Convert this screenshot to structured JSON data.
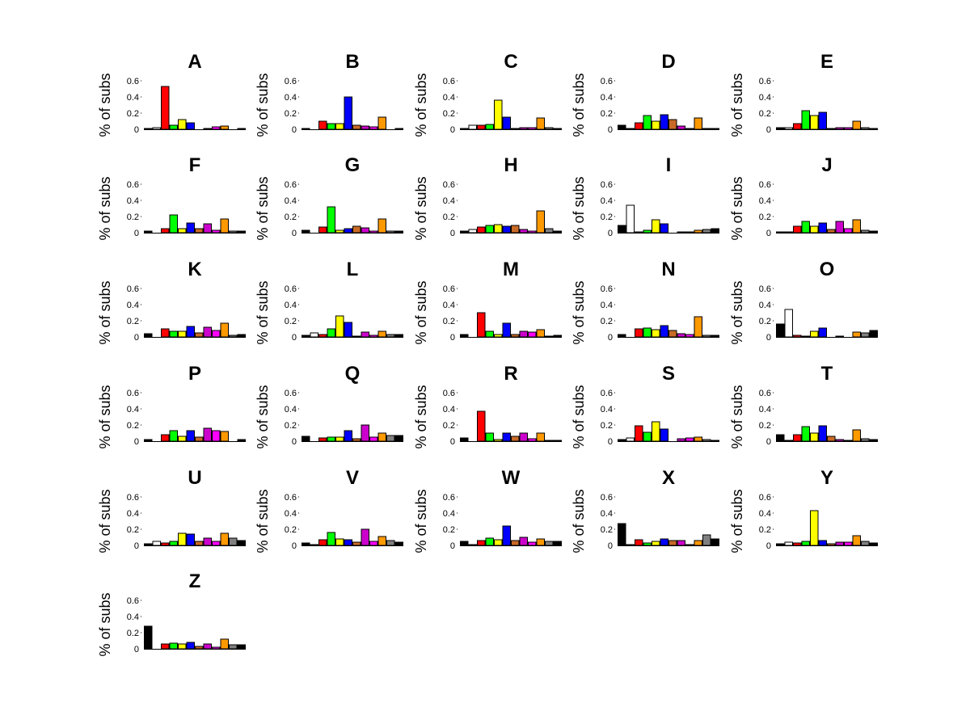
{
  "chart_data": {
    "type": "bar",
    "ylabel": "% of subs",
    "ylim": [
      0,
      0.7
    ],
    "yticks": [
      "0",
      "0.2",
      "0.4",
      "0.6"
    ],
    "ytick_values": [
      0,
      0.2,
      0.4,
      0.6
    ],
    "bar_colors": [
      "#000000",
      "#ffffff",
      "#ff0000",
      "#00ff00",
      "#ffff00",
      "#0000ff",
      "#c86a26",
      "#cc00cc",
      "#ff00ff",
      "#ff9900",
      "#808080",
      "#000000"
    ],
    "panels": [
      {
        "title": "A",
        "values": [
          0.01,
          0.02,
          0.53,
          0.05,
          0.12,
          0.08,
          0.0,
          0.01,
          0.03,
          0.04,
          0.0,
          0.01
        ]
      },
      {
        "title": "B",
        "values": [
          0.01,
          0.0,
          0.1,
          0.07,
          0.07,
          0.4,
          0.05,
          0.04,
          0.03,
          0.15,
          0.0,
          0.01
        ]
      },
      {
        "title": "C",
        "values": [
          0.01,
          0.05,
          0.05,
          0.06,
          0.36,
          0.15,
          0.01,
          0.02,
          0.02,
          0.14,
          0.02,
          0.01
        ]
      },
      {
        "title": "D",
        "values": [
          0.05,
          0.01,
          0.08,
          0.17,
          0.1,
          0.18,
          0.12,
          0.04,
          0.01,
          0.14,
          0.01,
          0.01
        ]
      },
      {
        "title": "E",
        "values": [
          0.02,
          0.02,
          0.07,
          0.23,
          0.17,
          0.21,
          0.01,
          0.02,
          0.02,
          0.1,
          0.02,
          0.01
        ]
      },
      {
        "title": "F",
        "values": [
          0.02,
          0.0,
          0.05,
          0.22,
          0.05,
          0.12,
          0.05,
          0.11,
          0.03,
          0.17,
          0.02,
          0.02
        ]
      },
      {
        "title": "G",
        "values": [
          0.03,
          0.0,
          0.07,
          0.32,
          0.03,
          0.05,
          0.08,
          0.06,
          0.02,
          0.17,
          0.02,
          0.02
        ]
      },
      {
        "title": "H",
        "values": [
          0.02,
          0.04,
          0.07,
          0.09,
          0.1,
          0.08,
          0.09,
          0.04,
          0.02,
          0.27,
          0.05,
          0.02
        ]
      },
      {
        "title": "I",
        "values": [
          0.09,
          0.34,
          0.01,
          0.03,
          0.16,
          0.11,
          0.0,
          0.01,
          0.01,
          0.03,
          0.04,
          0.05
        ]
      },
      {
        "title": "J",
        "values": [
          0.01,
          0.01,
          0.08,
          0.14,
          0.08,
          0.12,
          0.04,
          0.14,
          0.05,
          0.16,
          0.03,
          0.02
        ]
      },
      {
        "title": "K",
        "values": [
          0.04,
          0.0,
          0.1,
          0.07,
          0.07,
          0.13,
          0.05,
          0.12,
          0.08,
          0.17,
          0.02,
          0.03
        ]
      },
      {
        "title": "L",
        "values": [
          0.02,
          0.05,
          0.03,
          0.1,
          0.26,
          0.18,
          0.01,
          0.06,
          0.02,
          0.07,
          0.03,
          0.03
        ]
      },
      {
        "title": "M",
        "values": [
          0.03,
          0.0,
          0.3,
          0.07,
          0.03,
          0.17,
          0.03,
          0.07,
          0.06,
          0.09,
          0.01,
          0.02
        ]
      },
      {
        "title": "N",
        "values": [
          0.03,
          0.0,
          0.1,
          0.11,
          0.09,
          0.14,
          0.08,
          0.04,
          0.03,
          0.25,
          0.02,
          0.02
        ]
      },
      {
        "title": "O",
        "values": [
          0.16,
          0.34,
          0.02,
          0.01,
          0.07,
          0.11,
          0.0,
          0.01,
          0.0,
          0.06,
          0.05,
          0.08
        ]
      },
      {
        "title": "P",
        "values": [
          0.02,
          0.0,
          0.08,
          0.13,
          0.06,
          0.13,
          0.05,
          0.16,
          0.13,
          0.12,
          0.0,
          0.02
        ]
      },
      {
        "title": "Q",
        "values": [
          0.06,
          0.0,
          0.04,
          0.05,
          0.05,
          0.13,
          0.03,
          0.2,
          0.05,
          0.1,
          0.07,
          0.07
        ]
      },
      {
        "title": "R",
        "values": [
          0.04,
          0.0,
          0.37,
          0.1,
          0.02,
          0.1,
          0.06,
          0.1,
          0.03,
          0.1,
          0.01,
          0.01
        ]
      },
      {
        "title": "S",
        "values": [
          0.02,
          0.04,
          0.19,
          0.11,
          0.24,
          0.15,
          0.0,
          0.03,
          0.04,
          0.05,
          0.02,
          0.01
        ]
      },
      {
        "title": "T",
        "values": [
          0.08,
          0.01,
          0.08,
          0.18,
          0.1,
          0.19,
          0.06,
          0.02,
          0.01,
          0.14,
          0.03,
          0.02
        ]
      },
      {
        "title": "U",
        "values": [
          0.02,
          0.05,
          0.03,
          0.05,
          0.15,
          0.14,
          0.05,
          0.09,
          0.05,
          0.15,
          0.09,
          0.06
        ]
      },
      {
        "title": "V",
        "values": [
          0.03,
          0.01,
          0.07,
          0.16,
          0.08,
          0.07,
          0.04,
          0.2,
          0.05,
          0.11,
          0.06,
          0.04
        ]
      },
      {
        "title": "W",
        "values": [
          0.05,
          0.01,
          0.06,
          0.09,
          0.07,
          0.24,
          0.06,
          0.1,
          0.04,
          0.08,
          0.05,
          0.05
        ]
      },
      {
        "title": "X",
        "values": [
          0.27,
          0.01,
          0.07,
          0.03,
          0.05,
          0.08,
          0.06,
          0.06,
          0.01,
          0.06,
          0.13,
          0.08
        ]
      },
      {
        "title": "Y",
        "values": [
          0.02,
          0.04,
          0.03,
          0.05,
          0.43,
          0.06,
          0.02,
          0.04,
          0.04,
          0.12,
          0.05,
          0.03
        ]
      },
      {
        "title": "Z",
        "values": [
          0.28,
          0.0,
          0.06,
          0.07,
          0.06,
          0.08,
          0.03,
          0.06,
          0.02,
          0.12,
          0.05,
          0.05
        ]
      }
    ]
  }
}
